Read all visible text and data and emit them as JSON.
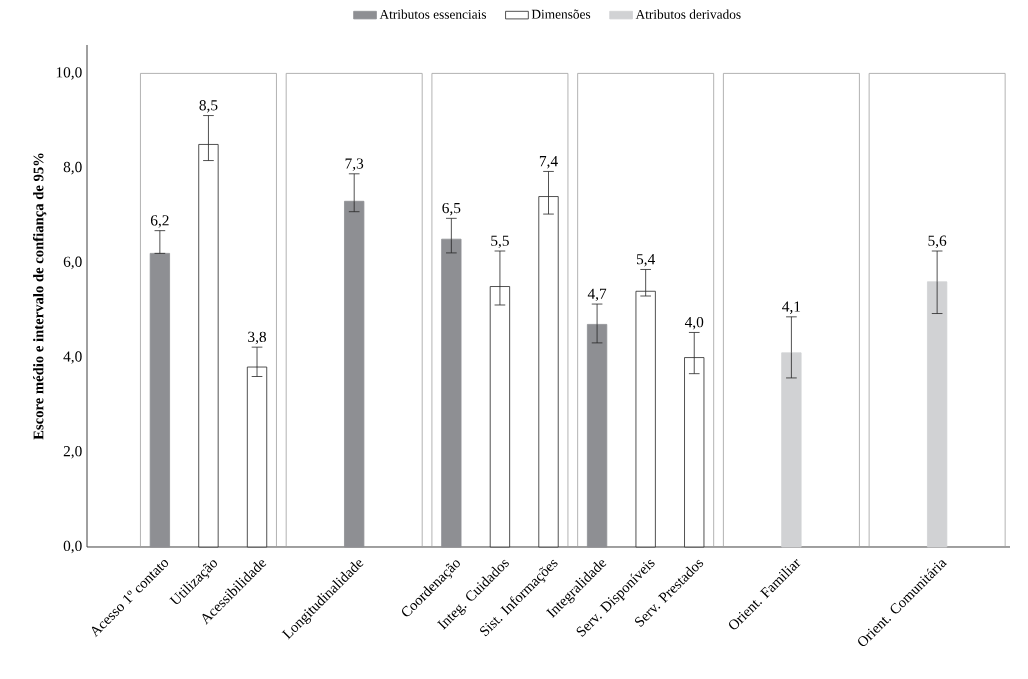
{
  "chart_data": {
    "type": "bar",
    "ylabel": "Escore médio e intervalo de confiança de 95%",
    "categories": [
      "Acesso 1º contato",
      "Utilização",
      "Acessibilidade",
      null,
      "Longitudinalidade",
      null,
      "Coordenação",
      "Integ. Cuidados",
      "Sist. Informações",
      "Integralidade",
      "Serv. Disponíveis",
      "Serv. Prestados",
      null,
      "Orient. Familiar",
      null,
      null,
      "Orient. Comunitária"
    ],
    "series": [
      {
        "name": "Atributos essenciais",
        "color": "#8e8f93",
        "values": [
          6.2,
          null,
          null,
          null,
          7.3,
          null,
          6.5,
          null,
          null,
          4.7,
          null,
          null,
          null,
          null,
          null,
          null,
          null
        ],
        "errors": [
          [
            6.2,
            6.68
          ],
          null,
          null,
          null,
          [
            7.08,
            7.88
          ],
          null,
          [
            6.21,
            6.94
          ],
          null,
          null,
          [
            4.31,
            5.13
          ],
          null,
          null,
          null,
          null,
          null,
          null,
          null
        ],
        "value_labels": [
          "6,2",
          null,
          null,
          null,
          "7,3",
          null,
          "6,5",
          null,
          null,
          "4,7",
          null,
          null,
          null,
          null,
          null,
          null,
          null
        ]
      },
      {
        "name": "Dimensões",
        "color": "#ffffff",
        "values": [
          null,
          8.5,
          3.8,
          null,
          null,
          null,
          null,
          5.5,
          7.4,
          null,
          5.4,
          4.0,
          null,
          null,
          null,
          null,
          null
        ],
        "errors": [
          null,
          [
            8.16,
            9.11
          ],
          [
            3.6,
            4.22
          ],
          null,
          null,
          null,
          null,
          [
            5.11,
            6.25
          ],
          [
            7.03,
            7.93
          ],
          null,
          [
            5.3,
            5.86
          ],
          [
            3.66,
            4.53
          ],
          null,
          null,
          null,
          null,
          null
        ],
        "value_labels": [
          null,
          "8,5",
          "3,8",
          null,
          null,
          null,
          null,
          "5,5",
          "7,4",
          null,
          "5,4",
          "4,0",
          null,
          null,
          null,
          null,
          null
        ]
      },
      {
        "name": "Atributos derivados",
        "color": "#d1d2d4",
        "values": [
          null,
          null,
          null,
          null,
          null,
          null,
          null,
          null,
          null,
          null,
          null,
          null,
          null,
          4.1,
          null,
          null,
          5.6
        ],
        "errors": [
          null,
          null,
          null,
          null,
          null,
          null,
          null,
          null,
          null,
          null,
          null,
          null,
          null,
          [
            3.57,
            4.86
          ],
          null,
          null,
          [
            4.93,
            6.25
          ]
        ],
        "value_labels": [
          null,
          null,
          null,
          null,
          null,
          null,
          null,
          null,
          null,
          null,
          null,
          null,
          null,
          "4,1",
          null,
          null,
          "5,6"
        ]
      }
    ],
    "ylim": [
      0,
      10.6
    ],
    "yticks": [
      {
        "value": 0,
        "label": "0,0"
      },
      {
        "value": 2,
        "label": "2,0"
      },
      {
        "value": 4,
        "label": "4,0"
      },
      {
        "value": 6,
        "label": "6,0"
      },
      {
        "value": 8,
        "label": "8,0"
      },
      {
        "value": 10,
        "label": "10,0"
      }
    ],
    "grid": false,
    "legend": "top"
  }
}
